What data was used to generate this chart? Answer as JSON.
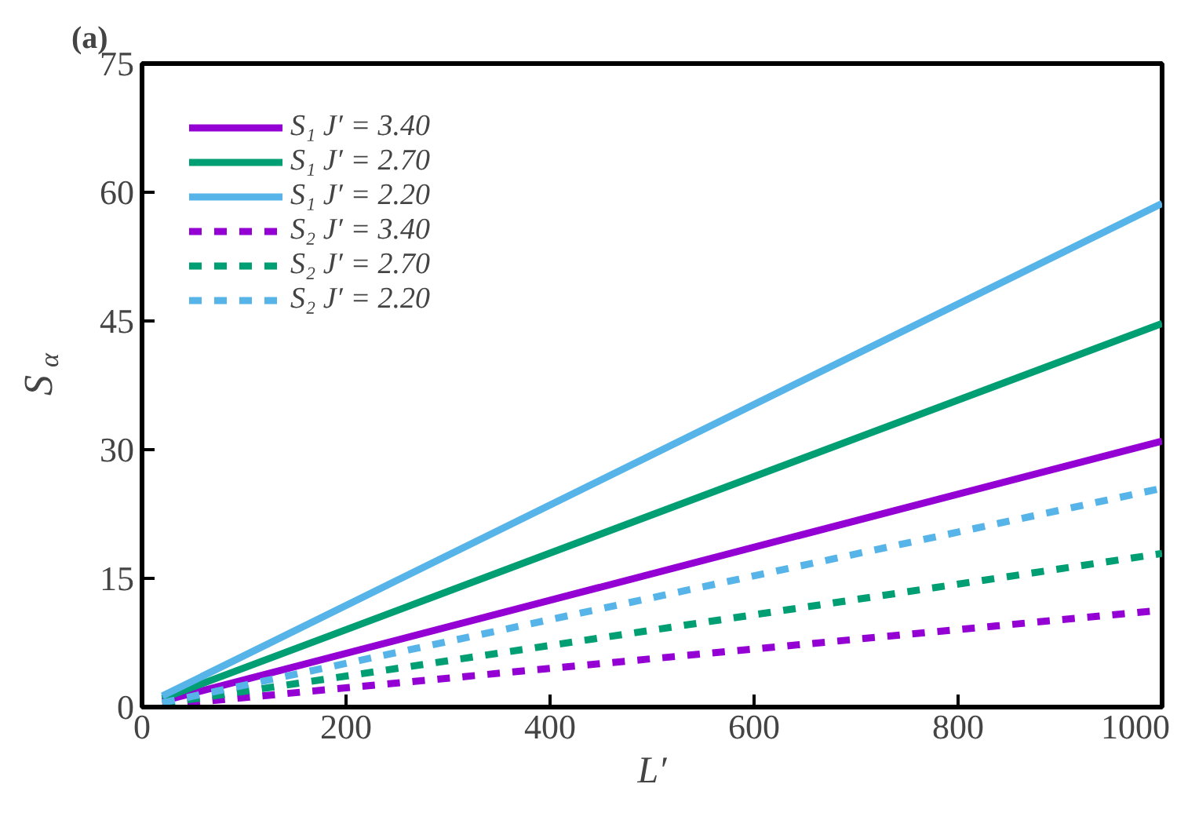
{
  "chart_data": {
    "type": "line",
    "title": "(a)",
    "xlabel": "L′",
    "ylabel": "S$_{α}$",
    "xlim": [
      0,
      1000
    ],
    "ylim": [
      0,
      75
    ],
    "xticks": [
      0,
      200,
      400,
      600,
      800,
      1000
    ],
    "yticks": [
      0,
      15,
      30,
      45,
      60,
      75
    ],
    "x": [
      20,
      1000
    ],
    "grid": false,
    "legend": "top left",
    "series": [
      {
        "name": "S₁ J′ = 3.40",
        "color": "#9400d3",
        "values": [
          0.7,
          31.0
        ],
        "line_style": "solid"
      },
      {
        "name": "S₁ J′ = 2.70",
        "color": "#009e73",
        "values": [
          1.0,
          44.7
        ],
        "line_style": "solid"
      },
      {
        "name": "S₁ J′ = 2.20",
        "color": "#56b4e9",
        "values": [
          1.3,
          58.7
        ],
        "line_style": "solid"
      },
      {
        "name": "S₂ J′ = 3.40",
        "color": "#9400d3",
        "values": [
          0.2,
          11.3
        ],
        "line_style": "dashed"
      },
      {
        "name": "S₂ J′ = 2.70",
        "color": "#009e73",
        "values": [
          0.4,
          17.9
        ],
        "line_style": "dashed"
      },
      {
        "name": "S₂ J′ = 2.20",
        "color": "#56b4e9",
        "values": [
          0.5,
          25.5
        ],
        "line_style": "dashed"
      }
    ]
  }
}
